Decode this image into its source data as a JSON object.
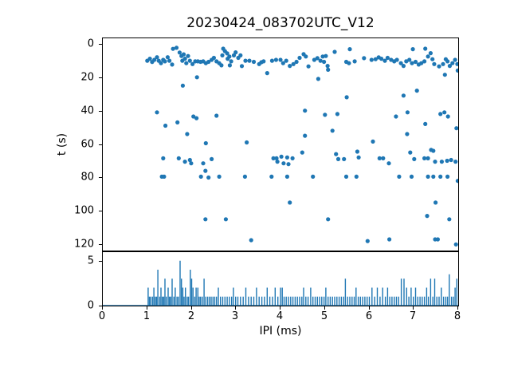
{
  "colors": {
    "accent": "#1f77b4",
    "spine": "#000000",
    "background": "#ffffff",
    "text": "#000000"
  },
  "chart_data": [
    {
      "type": "scatter",
      "title": "20230424_083702UTC_V12",
      "ylabel": "t (s)",
      "xlabel": "",
      "xlim": [
        0,
        8
      ],
      "ylim": [
        123.7,
        -3.3
      ],
      "y_inverted": true,
      "yticks": [
        0,
        20,
        40,
        60,
        80,
        100,
        120
      ],
      "grid": false,
      "legend": "none",
      "marker_color": "#1f77b4",
      "marker_size": 2.6,
      "points": [
        [
          1.0,
          10.1
        ],
        [
          1.06,
          8.9
        ],
        [
          1.11,
          10.9
        ],
        [
          1.16,
          9.6
        ],
        [
          1.22,
          8.0
        ],
        [
          1.26,
          10.1
        ],
        [
          1.31,
          11.6
        ],
        [
          1.36,
          9.6
        ],
        [
          1.4,
          10.5
        ],
        [
          1.46,
          8.0
        ],
        [
          1.5,
          10.1
        ],
        [
          1.56,
          12.4
        ],
        [
          1.58,
          3.0
        ],
        [
          1.66,
          2.4
        ],
        [
          1.73,
          5.2
        ],
        [
          1.77,
          7.3
        ],
        [
          1.79,
          10.1
        ],
        [
          1.82,
          6.3
        ],
        [
          1.85,
          8.9
        ],
        [
          1.88,
          11.6
        ],
        [
          1.92,
          7.3
        ],
        [
          1.96,
          10.1
        ],
        [
          2.02,
          12.1
        ],
        [
          2.08,
          10.5
        ],
        [
          2.14,
          10.5
        ],
        [
          2.2,
          10.8
        ],
        [
          2.26,
          10.5
        ],
        [
          2.32,
          11.6
        ],
        [
          2.38,
          10.8
        ],
        [
          2.45,
          9.6
        ],
        [
          2.5,
          8.4
        ],
        [
          2.56,
          10.5
        ],
        [
          2.62,
          11.6
        ],
        [
          2.67,
          12.9
        ],
        [
          2.69,
          6.9
        ],
        [
          2.71,
          2.9
        ],
        [
          2.75,
          4.4
        ],
        [
          2.8,
          5.7
        ],
        [
          2.81,
          8.9
        ],
        [
          2.85,
          7.6
        ],
        [
          2.86,
          12.9
        ],
        [
          2.89,
          10.5
        ],
        [
          2.95,
          6.9
        ],
        [
          2.99,
          5.1
        ],
        [
          3.05,
          8.4
        ],
        [
          3.1,
          6.9
        ],
        [
          3.13,
          13.3
        ],
        [
          3.21,
          10.1
        ],
        [
          3.3,
          10.1
        ],
        [
          3.4,
          10.8
        ],
        [
          3.52,
          12.1
        ],
        [
          3.57,
          11.0
        ],
        [
          3.62,
          10.5
        ],
        [
          3.81,
          10.1
        ],
        [
          3.9,
          9.6
        ],
        [
          4.0,
          9.6
        ],
        [
          4.06,
          11.6
        ],
        [
          4.13,
          10.1
        ],
        [
          4.21,
          13.2
        ],
        [
          4.29,
          12.1
        ],
        [
          4.36,
          10.8
        ],
        [
          4.43,
          8.4
        ],
        [
          4.52,
          6.2
        ],
        [
          4.57,
          7.6
        ],
        [
          4.63,
          13.5
        ],
        [
          4.76,
          9.6
        ],
        [
          4.83,
          8.6
        ],
        [
          4.9,
          10.1
        ],
        [
          4.95,
          7.6
        ],
        [
          4.98,
          10.8
        ],
        [
          5.02,
          7.3
        ],
        [
          5.06,
          13.2
        ],
        [
          5.22,
          4.8
        ],
        [
          5.48,
          10.8
        ],
        [
          5.54,
          11.6
        ],
        [
          5.56,
          3.2
        ],
        [
          5.67,
          10.5
        ],
        [
          5.88,
          8.6
        ],
        [
          6.05,
          9.6
        ],
        [
          6.14,
          9.2
        ],
        [
          6.21,
          8.1
        ],
        [
          6.27,
          8.9
        ],
        [
          6.35,
          10.1
        ],
        [
          6.41,
          8.4
        ],
        [
          6.49,
          9.6
        ],
        [
          6.56,
          10.5
        ],
        [
          6.62,
          9.6
        ],
        [
          6.71,
          11.6
        ],
        [
          6.77,
          13.2
        ],
        [
          6.83,
          10.5
        ],
        [
          6.9,
          9.6
        ],
        [
          6.96,
          11.6
        ],
        [
          6.98,
          3.2
        ],
        [
          7.04,
          10.8
        ],
        [
          7.11,
          12.4
        ],
        [
          7.17,
          11.6
        ],
        [
          7.24,
          10.5
        ],
        [
          7.26,
          2.9
        ],
        [
          7.32,
          7.6
        ],
        [
          7.38,
          5.6
        ],
        [
          7.42,
          9.2
        ],
        [
          7.46,
          12.1
        ],
        [
          7.57,
          13.5
        ],
        [
          7.66,
          12.1
        ],
        [
          7.72,
          9.2
        ],
        [
          7.76,
          10.5
        ],
        [
          7.81,
          13.2
        ],
        [
          7.87,
          11.6
        ],
        [
          7.93,
          9.6
        ],
        [
          7.98,
          12.1
        ],
        [
          1.8,
          25
        ],
        [
          2.12,
          20
        ],
        [
          3.7,
          17.5
        ],
        [
          4.85,
          21
        ],
        [
          5.07,
          15.5
        ],
        [
          7.7,
          18.5
        ],
        [
          7.99,
          16
        ],
        [
          1.22,
          41
        ],
        [
          1.41,
          49
        ],
        [
          1.68,
          47
        ],
        [
          1.9,
          54
        ],
        [
          2.04,
          43.5
        ],
        [
          2.11,
          44.5
        ],
        [
          2.32,
          59.5
        ],
        [
          2.56,
          43
        ],
        [
          3.24,
          59
        ],
        [
          4.55,
          40
        ],
        [
          4.55,
          55
        ],
        [
          5.0,
          42.5
        ],
        [
          5.17,
          52
        ],
        [
          5.28,
          42
        ],
        [
          5.49,
          32
        ],
        [
          6.08,
          58.5
        ],
        [
          6.6,
          43.5
        ],
        [
          6.77,
          31
        ],
        [
          6.85,
          54
        ],
        [
          6.86,
          41
        ],
        [
          7.07,
          28
        ],
        [
          7.26,
          48
        ],
        [
          7.6,
          42
        ],
        [
          7.69,
          41
        ],
        [
          7.77,
          43.5
        ],
        [
          7.96,
          50.5
        ],
        [
          1.36,
          68.5
        ],
        [
          1.71,
          68.5
        ],
        [
          1.85,
          70.5
        ],
        [
          1.96,
          69.5
        ],
        [
          1.99,
          71.5
        ],
        [
          2.26,
          71.5
        ],
        [
          2.45,
          69
        ],
        [
          3.84,
          68.5
        ],
        [
          3.91,
          68.5
        ],
        [
          3.93,
          70.5
        ],
        [
          4.02,
          67.5
        ],
        [
          4.07,
          71.5
        ],
        [
          4.15,
          68
        ],
        [
          4.18,
          72
        ],
        [
          4.27,
          68.5
        ],
        [
          4.49,
          65
        ],
        [
          5.25,
          66
        ],
        [
          5.3,
          69
        ],
        [
          5.43,
          69
        ],
        [
          5.73,
          64.5
        ],
        [
          5.76,
          68
        ],
        [
          6.23,
          68.5
        ],
        [
          6.31,
          68.5
        ],
        [
          6.44,
          71.5
        ],
        [
          6.92,
          65
        ],
        [
          7.01,
          69
        ],
        [
          7.24,
          68.5
        ],
        [
          7.32,
          68.5
        ],
        [
          7.39,
          63.5
        ],
        [
          7.44,
          64
        ],
        [
          7.48,
          70.5
        ],
        [
          7.63,
          70.5
        ],
        [
          7.75,
          70
        ],
        [
          7.84,
          69.5
        ],
        [
          7.94,
          70.5
        ],
        [
          1.33,
          79.5
        ],
        [
          1.38,
          79.5
        ],
        [
          2.21,
          79.5
        ],
        [
          2.31,
          76
        ],
        [
          2.38,
          80
        ],
        [
          2.62,
          79.5
        ],
        [
          3.2,
          79.5
        ],
        [
          3.8,
          79.5
        ],
        [
          4.15,
          79.5
        ],
        [
          4.73,
          79.5
        ],
        [
          5.48,
          79.5
        ],
        [
          5.71,
          79.5
        ],
        [
          6.67,
          79.5
        ],
        [
          6.95,
          79.5
        ],
        [
          7.32,
          79.5
        ],
        [
          7.44,
          79.5
        ],
        [
          7.6,
          79.5
        ],
        [
          7.76,
          79.5
        ],
        [
          7.99,
          82
        ],
        [
          4.21,
          95
        ],
        [
          7.49,
          95
        ],
        [
          2.31,
          105
        ],
        [
          2.77,
          105
        ],
        [
          5.07,
          105
        ],
        [
          7.3,
          103
        ],
        [
          7.8,
          105
        ],
        [
          3.34,
          117.5
        ],
        [
          5.96,
          118
        ],
        [
          6.45,
          117
        ],
        [
          7.48,
          117
        ],
        [
          7.54,
          117
        ],
        [
          7.95,
          120
        ]
      ]
    },
    {
      "type": "line",
      "title": "",
      "xlabel": "IPI (ms)",
      "ylabel": "",
      "xlim": [
        0,
        8
      ],
      "ylim": [
        0,
        5.96
      ],
      "yticks": [
        0,
        5
      ],
      "xticks": [
        0,
        1,
        2,
        3,
        4,
        5,
        6,
        7,
        8
      ],
      "grid": false,
      "legend": "none",
      "line_color": "#1f77b4",
      "baseline": 0,
      "flat_until": 1.0,
      "spikes": [
        [
          1.02,
          2
        ],
        [
          1.05,
          1
        ],
        [
          1.08,
          1
        ],
        [
          1.12,
          1
        ],
        [
          1.15,
          2
        ],
        [
          1.18,
          1
        ],
        [
          1.21,
          1
        ],
        [
          1.24,
          4
        ],
        [
          1.28,
          1
        ],
        [
          1.31,
          2
        ],
        [
          1.34,
          1
        ],
        [
          1.37,
          1
        ],
        [
          1.4,
          3
        ],
        [
          1.43,
          1
        ],
        [
          1.47,
          2
        ],
        [
          1.5,
          1
        ],
        [
          1.53,
          1
        ],
        [
          1.56,
          3
        ],
        [
          1.6,
          1
        ],
        [
          1.63,
          2
        ],
        [
          1.67,
          1
        ],
        [
          1.7,
          1
        ],
        [
          1.74,
          5
        ],
        [
          1.77,
          3
        ],
        [
          1.8,
          2
        ],
        [
          1.83,
          1
        ],
        [
          1.86,
          2
        ],
        [
          1.9,
          1
        ],
        [
          1.93,
          1
        ],
        [
          1.97,
          4
        ],
        [
          2.0,
          3
        ],
        [
          2.03,
          2
        ],
        [
          2.07,
          1
        ],
        [
          2.1,
          2
        ],
        [
          2.14,
          2
        ],
        [
          2.17,
          1
        ],
        [
          2.2,
          1
        ],
        [
          2.24,
          1
        ],
        [
          2.28,
          3
        ],
        [
          2.32,
          1
        ],
        [
          2.36,
          1
        ],
        [
          2.4,
          1
        ],
        [
          2.44,
          1
        ],
        [
          2.48,
          1
        ],
        [
          2.52,
          1
        ],
        [
          2.56,
          1
        ],
        [
          2.6,
          2
        ],
        [
          2.65,
          1
        ],
        [
          2.7,
          1
        ],
        [
          2.75,
          1
        ],
        [
          2.8,
          1
        ],
        [
          2.85,
          1
        ],
        [
          2.9,
          1
        ],
        [
          2.94,
          2
        ],
        [
          2.99,
          1
        ],
        [
          3.04,
          1
        ],
        [
          3.1,
          1
        ],
        [
          3.16,
          1
        ],
        [
          3.22,
          2
        ],
        [
          3.28,
          1
        ],
        [
          3.34,
          1
        ],
        [
          3.4,
          1
        ],
        [
          3.46,
          2
        ],
        [
          3.52,
          1
        ],
        [
          3.58,
          1
        ],
        [
          3.64,
          1
        ],
        [
          3.7,
          2
        ],
        [
          3.76,
          1
        ],
        [
          3.82,
          1
        ],
        [
          3.88,
          2
        ],
        [
          3.94,
          1
        ],
        [
          4.0,
          2
        ],
        [
          4.04,
          2
        ],
        [
          4.08,
          1
        ],
        [
          4.13,
          1
        ],
        [
          4.18,
          1
        ],
        [
          4.23,
          1
        ],
        [
          4.28,
          1
        ],
        [
          4.33,
          1
        ],
        [
          4.38,
          1
        ],
        [
          4.43,
          1
        ],
        [
          4.48,
          1
        ],
        [
          4.52,
          2
        ],
        [
          4.57,
          1
        ],
        [
          4.62,
          1
        ],
        [
          4.68,
          2
        ],
        [
          4.73,
          1
        ],
        [
          4.78,
          1
        ],
        [
          4.83,
          1
        ],
        [
          4.88,
          1
        ],
        [
          4.93,
          1
        ],
        [
          4.98,
          1
        ],
        [
          5.02,
          2
        ],
        [
          5.07,
          1
        ],
        [
          5.12,
          1
        ],
        [
          5.17,
          1
        ],
        [
          5.22,
          1
        ],
        [
          5.27,
          1
        ],
        [
          5.32,
          1
        ],
        [
          5.37,
          1
        ],
        [
          5.42,
          1
        ],
        [
          5.46,
          3
        ],
        [
          5.51,
          1
        ],
        [
          5.56,
          1
        ],
        [
          5.61,
          1
        ],
        [
          5.66,
          1
        ],
        [
          5.7,
          2
        ],
        [
          5.75,
          1
        ],
        [
          5.8,
          1
        ],
        [
          5.85,
          1
        ],
        [
          5.9,
          1
        ],
        [
          5.95,
          1
        ],
        [
          6.0,
          1
        ],
        [
          6.06,
          2
        ],
        [
          6.12,
          1
        ],
        [
          6.18,
          2
        ],
        [
          6.24,
          1
        ],
        [
          6.3,
          2
        ],
        [
          6.36,
          1
        ],
        [
          6.41,
          2
        ],
        [
          6.46,
          1
        ],
        [
          6.51,
          1
        ],
        [
          6.56,
          1
        ],
        [
          6.61,
          1
        ],
        [
          6.66,
          1
        ],
        [
          6.72,
          3
        ],
        [
          6.78,
          3
        ],
        [
          6.84,
          2
        ],
        [
          6.89,
          1
        ],
        [
          6.94,
          2
        ],
        [
          6.99,
          1
        ],
        [
          7.04,
          2
        ],
        [
          7.09,
          1
        ],
        [
          7.14,
          1
        ],
        [
          7.19,
          1
        ],
        [
          7.24,
          1
        ],
        [
          7.29,
          2
        ],
        [
          7.33,
          1
        ],
        [
          7.38,
          3
        ],
        [
          7.43,
          1
        ],
        [
          7.47,
          3
        ],
        [
          7.52,
          1
        ],
        [
          7.57,
          1
        ],
        [
          7.62,
          2
        ],
        [
          7.67,
          1
        ],
        [
          7.72,
          1
        ],
        [
          7.76,
          1
        ],
        [
          7.8,
          3.5
        ],
        [
          7.85,
          1
        ],
        [
          7.89,
          1
        ],
        [
          7.93,
          2
        ],
        [
          7.97,
          3
        ]
      ]
    }
  ]
}
